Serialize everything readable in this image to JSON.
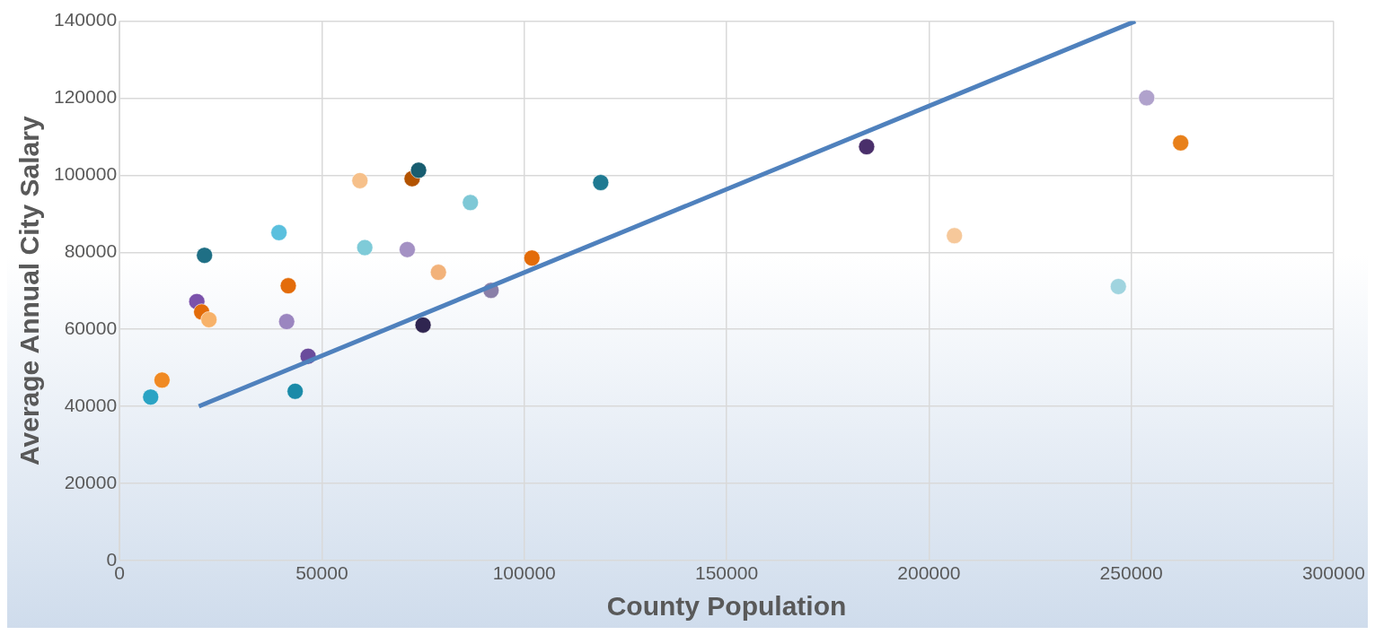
{
  "chart_data": {
    "type": "scatter",
    "xlabel": "County Population",
    "ylabel": "Average Annual City Salary",
    "xlim": [
      0,
      300000
    ],
    "xticks": [
      0,
      50000,
      100000,
      150000,
      200000,
      250000,
      300000
    ],
    "ylim": [
      0,
      140000
    ],
    "yticks": [
      0,
      20000,
      40000,
      60000,
      80000,
      100000,
      120000,
      140000
    ],
    "grid": true,
    "legend": false,
    "series": [
      {
        "marker": "circle",
        "x": [
          7700,
          10500,
          19100,
          20300,
          22100,
          21000,
          39400,
          41700,
          41300,
          46600,
          43400,
          59400,
          60600,
          71100,
          72300,
          73900,
          75000,
          78800,
          86700,
          91800,
          101900,
          118900,
          184600,
          206300,
          246800,
          253800,
          262200
        ],
        "values": [
          42400,
          46800,
          67200,
          64500,
          62500,
          79200,
          85100,
          71300,
          62000,
          53000,
          43900,
          98600,
          81200,
          80700,
          99100,
          101300,
          61100,
          74800,
          92900,
          70100,
          78500,
          98100,
          107400,
          84300,
          71100,
          120100,
          108400
        ],
        "colors": [
          "#2aa3c4",
          "#f08a24",
          "#7b52ab",
          "#e36c0a",
          "#f7b26a",
          "#1f6f85",
          "#5bc0de",
          "#e36c0a",
          "#9b86c0",
          "#6a4c9c",
          "#1a8aa8",
          "#f6c08a",
          "#7fcbd8",
          "#a491c4",
          "#b35300",
          "#185d70",
          "#2f2550",
          "#f2b27a",
          "#7ec8d6",
          "#8a7fa8",
          "#e36c0a",
          "#1f7a92",
          "#4a2f6b",
          "#f6c89a",
          "#a0d4df",
          "#b0a2cc",
          "#e8801a"
        ]
      },
      {
        "type": "line",
        "x": [
          19600,
          251000
        ],
        "values": [
          40000,
          140000
        ],
        "color": "#4f81bd",
        "marker": "none"
      }
    ]
  }
}
